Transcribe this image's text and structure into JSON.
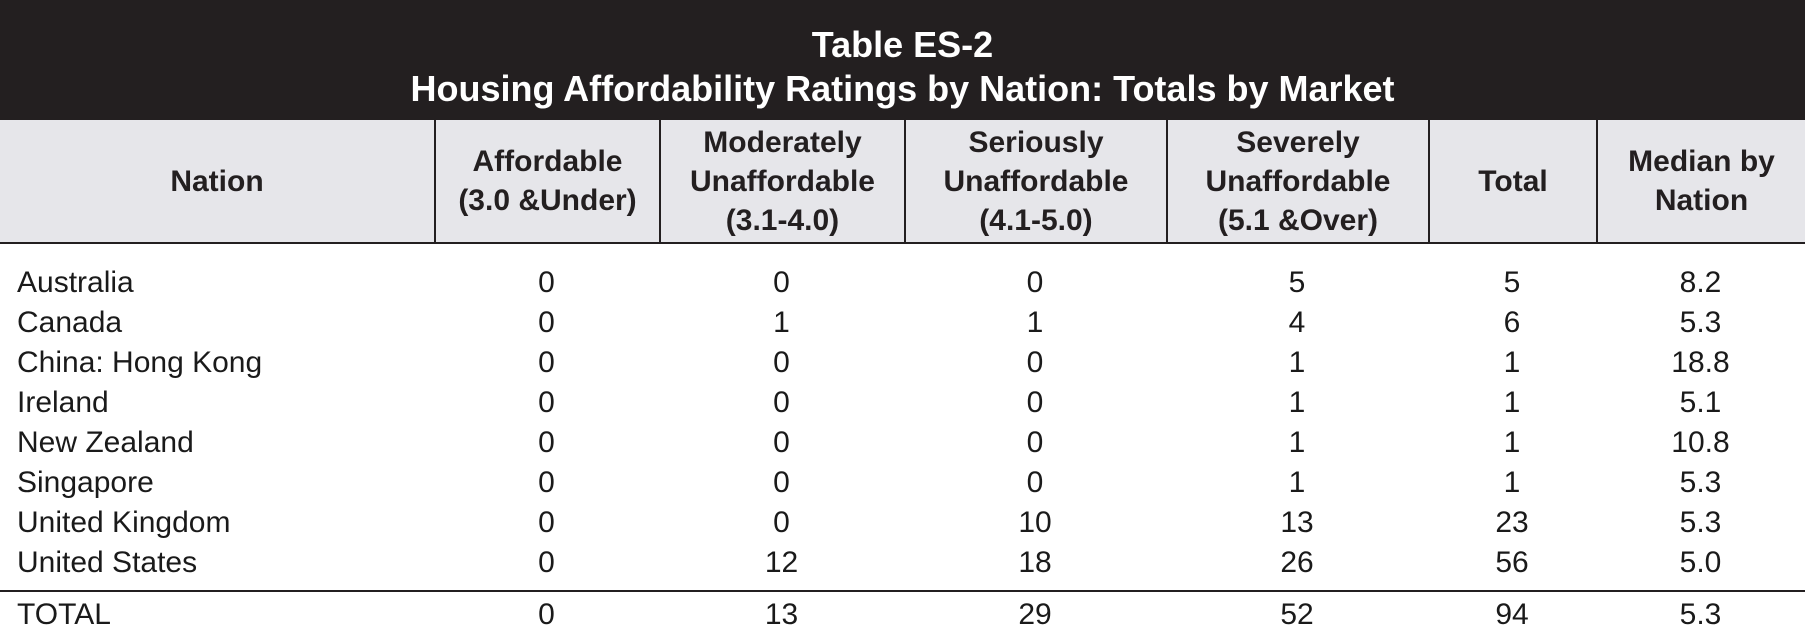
{
  "chart_data": {
    "type": "table",
    "title": "Table ES-2",
    "subtitle": "Housing Affordability Ratings by Nation: Totals by Market",
    "columns": [
      "Nation",
      "Affordable\n(3.0 &Under)",
      "Moderately\nUnaffordable\n(3.1-4.0)",
      "Seriously\nUnaffordable\n(4.1-5.0)",
      "Severely\nUnaffordable\n(5.1 &Over)",
      "Total",
      "Median by\nNation"
    ],
    "rows": [
      [
        "Australia",
        "0",
        "0",
        "0",
        "5",
        "5",
        "8.2"
      ],
      [
        "Canada",
        "0",
        "1",
        "1",
        "4",
        "6",
        "5.3"
      ],
      [
        "China: Hong Kong",
        "0",
        "0",
        "0",
        "1",
        "1",
        "18.8"
      ],
      [
        "Ireland",
        "0",
        "0",
        "0",
        "1",
        "1",
        "5.1"
      ],
      [
        "New Zealand",
        "0",
        "0",
        "0",
        "1",
        "1",
        "10.8"
      ],
      [
        "Singapore",
        "0",
        "0",
        "0",
        "1",
        "1",
        "5.3"
      ],
      [
        "United Kingdom",
        "0",
        "0",
        "10",
        "13",
        "23",
        "5.3"
      ],
      [
        "United States",
        "0",
        "12",
        "18",
        "26",
        "56",
        "5.0"
      ]
    ],
    "total_row": [
      "TOTAL",
      "0",
      "13",
      "29",
      "52",
      "94",
      "5.3"
    ]
  },
  "colors": {
    "title_background": "#231f20",
    "title_text": "#ffffff",
    "header_background": "#e6e6ea",
    "rule": "#231f20"
  }
}
